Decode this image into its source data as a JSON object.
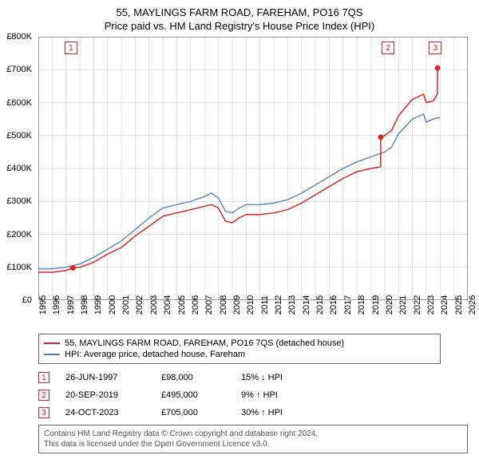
{
  "title": "55, MAYLINGS FARM ROAD, FAREHAM, PO16 7QS",
  "subtitle": "Price paid vs. HM Land Registry's House Price Index (HPI)",
  "chart": {
    "type": "line",
    "background_color": "#ffffff",
    "grid_color": "#cccccc",
    "axis_color": "#333333",
    "xlim": [
      1995,
      2026
    ],
    "ylim": [
      0,
      800000
    ],
    "ytick_step": 100000,
    "yticks": [
      {
        "v": 0,
        "label": "£0"
      },
      {
        "v": 100000,
        "label": "£100K"
      },
      {
        "v": 200000,
        "label": "£200K"
      },
      {
        "v": 300000,
        "label": "£300K"
      },
      {
        "v": 400000,
        "label": "£400K"
      },
      {
        "v": 500000,
        "label": "£500K"
      },
      {
        "v": 600000,
        "label": "£600K"
      },
      {
        "v": 700000,
        "label": "£700K"
      },
      {
        "v": 800000,
        "label": "£800K"
      }
    ],
    "xticks": [
      1995,
      1996,
      1997,
      1998,
      1999,
      2000,
      2001,
      2002,
      2003,
      2004,
      2005,
      2006,
      2007,
      2008,
      2009,
      2010,
      2011,
      2012,
      2013,
      2014,
      2015,
      2016,
      2017,
      2018,
      2019,
      2020,
      2021,
      2022,
      2023,
      2024,
      2025,
      2026
    ],
    "series": [
      {
        "name": "55, MAYLINGS FARM ROAD, FAREHAM, PO16 7QS (detached house)",
        "color": "#d62728",
        "line_width": 1.5,
        "points": [
          [
            1995,
            85000
          ],
          [
            1996,
            85000
          ],
          [
            1997,
            90000
          ],
          [
            1997.5,
            98000
          ],
          [
            1998,
            100000
          ],
          [
            1999,
            115000
          ],
          [
            2000,
            140000
          ],
          [
            2001,
            160000
          ],
          [
            2002,
            195000
          ],
          [
            2003,
            225000
          ],
          [
            2004,
            255000
          ],
          [
            2005,
            265000
          ],
          [
            2006,
            275000
          ],
          [
            2007,
            285000
          ],
          [
            2007.5,
            290000
          ],
          [
            2008,
            280000
          ],
          [
            2008.5,
            240000
          ],
          [
            2009,
            235000
          ],
          [
            2009.5,
            250000
          ],
          [
            2010,
            260000
          ],
          [
            2011,
            260000
          ],
          [
            2012,
            265000
          ],
          [
            2013,
            275000
          ],
          [
            2014,
            295000
          ],
          [
            2015,
            320000
          ],
          [
            2016,
            345000
          ],
          [
            2017,
            370000
          ],
          [
            2018,
            390000
          ],
          [
            2019,
            400000
          ],
          [
            2019.7,
            405000
          ],
          [
            2019.72,
            495000
          ],
          [
            2020,
            500000
          ],
          [
            2020.5,
            515000
          ],
          [
            2021,
            560000
          ],
          [
            2022,
            610000
          ],
          [
            2022.8,
            625000
          ],
          [
            2023,
            600000
          ],
          [
            2023.5,
            605000
          ],
          [
            2023.8,
            625000
          ],
          [
            2023.82,
            705000
          ]
        ]
      },
      {
        "name": "HPI: Average price, detached house, Fareham",
        "color": "#4a7ebb",
        "line_width": 1.3,
        "points": [
          [
            1995,
            95000
          ],
          [
            1996,
            95000
          ],
          [
            1997,
            100000
          ],
          [
            1998,
            110000
          ],
          [
            1999,
            130000
          ],
          [
            2000,
            155000
          ],
          [
            2001,
            180000
          ],
          [
            2002,
            215000
          ],
          [
            2003,
            250000
          ],
          [
            2004,
            280000
          ],
          [
            2005,
            290000
          ],
          [
            2006,
            300000
          ],
          [
            2007,
            315000
          ],
          [
            2007.5,
            325000
          ],
          [
            2008,
            310000
          ],
          [
            2008.5,
            270000
          ],
          [
            2009,
            265000
          ],
          [
            2009.5,
            280000
          ],
          [
            2010,
            290000
          ],
          [
            2011,
            290000
          ],
          [
            2012,
            295000
          ],
          [
            2013,
            305000
          ],
          [
            2014,
            325000
          ],
          [
            2015,
            350000
          ],
          [
            2016,
            375000
          ],
          [
            2017,
            400000
          ],
          [
            2018,
            420000
          ],
          [
            2019,
            435000
          ],
          [
            2020,
            450000
          ],
          [
            2020.5,
            465000
          ],
          [
            2021,
            505000
          ],
          [
            2022,
            550000
          ],
          [
            2022.8,
            565000
          ],
          [
            2023,
            540000
          ],
          [
            2023.5,
            550000
          ],
          [
            2024,
            555000
          ]
        ]
      }
    ],
    "markers": [
      {
        "id": "1",
        "x": 1997.5,
        "y": 98000,
        "color": "#d62728",
        "label_x": 1997.3,
        "label_y_top": 6
      },
      {
        "id": "2",
        "x": 2019.72,
        "y": 495000,
        "color": "#d62728",
        "label_x": 2020.2,
        "label_y_top": 6
      },
      {
        "id": "3",
        "x": 2023.82,
        "y": 705000,
        "color": "#d62728",
        "label_x": 2023.6,
        "label_y_top": 6
      }
    ]
  },
  "legend": {
    "items": [
      {
        "color": "#d62728",
        "label": "55, MAYLINGS FARM ROAD, FAREHAM, PO16 7QS (detached house)"
      },
      {
        "color": "#4a7ebb",
        "label": "HPI: Average price, detached house, Fareham"
      }
    ]
  },
  "events": [
    {
      "id": "1",
      "color": "#d62728",
      "date": "26-JUN-1997",
      "price": "£98,000",
      "diff": "15% ↓ HPI"
    },
    {
      "id": "2",
      "color": "#d62728",
      "date": "20-SEP-2019",
      "price": "£495,000",
      "diff": "9% ↑ HPI"
    },
    {
      "id": "3",
      "color": "#d62728",
      "date": "24-OCT-2023",
      "price": "£705,000",
      "diff": "30% ↑ HPI"
    }
  ],
  "footer": {
    "line1": "Contains HM Land Registry data © Crown copyright and database right 2024.",
    "line2": "This data is licensed under the Open Government Licence v3.0."
  }
}
